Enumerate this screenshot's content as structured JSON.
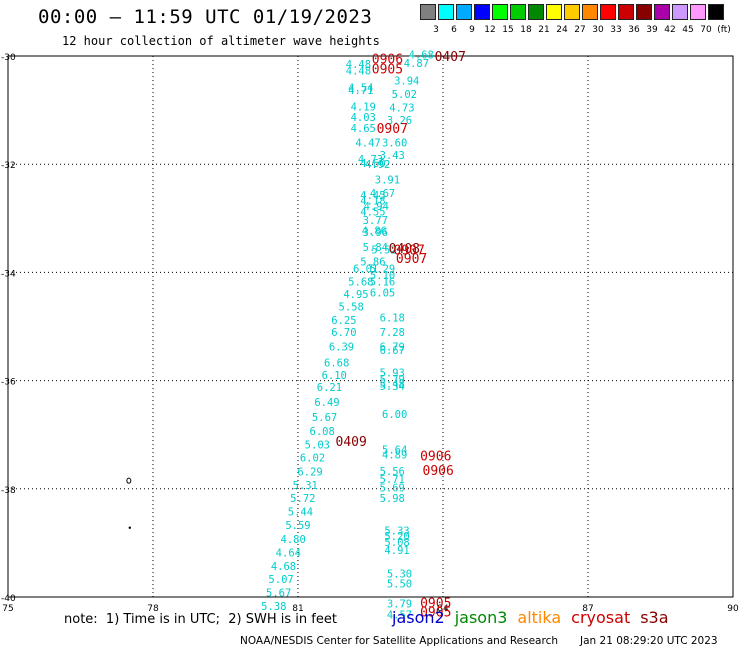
{
  "header": {
    "title": "00:00 – 11:59 UTC 01/19/2023",
    "subtitle": "12 hour collection of altimeter wave heights"
  },
  "color_scale": {
    "unit": "(ft)",
    "items": [
      {
        "label": "3",
        "color": "#808080"
      },
      {
        "label": "6",
        "color": "#00ffff"
      },
      {
        "label": "9",
        "color": "#00aaff"
      },
      {
        "label": "12",
        "color": "#0000ff"
      },
      {
        "label": "15",
        "color": "#00ff00"
      },
      {
        "label": "18",
        "color": "#00cc00"
      },
      {
        "label": "21",
        "color": "#008800"
      },
      {
        "label": "24",
        "color": "#ffff00"
      },
      {
        "label": "27",
        "color": "#ffcc00"
      },
      {
        "label": "30",
        "color": "#ff8800"
      },
      {
        "label": "33",
        "color": "#ff0000"
      },
      {
        "label": "36",
        "color": "#cc0000"
      },
      {
        "label": "39",
        "color": "#880000"
      },
      {
        "label": "42",
        "color": "#aa00aa"
      },
      {
        "label": "45",
        "color": "#cc99ff"
      },
      {
        "label": "70",
        "color": "#ff99ff"
      },
      {
        "label": "",
        "color": "#000000"
      }
    ]
  },
  "chart_data": {
    "type": "scatter",
    "xlim": [
      75,
      90
    ],
    "ylim": [
      -40,
      -30
    ],
    "x_ticks": [
      "75",
      "78",
      "81",
      "84",
      "87",
      "90"
    ],
    "y_ticks": [
      "-30",
      "-32",
      "-34",
      "-36",
      "-38",
      "-40"
    ],
    "grid": true,
    "point_color": "#00cccc",
    "observations": [
      {
        "label": "4.48",
        "lon": 82.25,
        "lat": -30.15
      },
      {
        "label": "4.48",
        "lon": 82.25,
        "lat": -30.27
      },
      {
        "label": "4.54",
        "lon": 82.3,
        "lat": -30.58
      },
      {
        "label": "4.71",
        "lon": 82.3,
        "lat": -30.63
      },
      {
        "label": "4.19",
        "lon": 82.35,
        "lat": -30.93
      },
      {
        "label": "4.03",
        "lon": 82.35,
        "lat": -31.13
      },
      {
        "label": "4.65",
        "lon": 82.35,
        "lat": -31.33
      },
      {
        "label": "4.47",
        "lon": 82.45,
        "lat": -31.6
      },
      {
        "label": "4.73",
        "lon": 82.5,
        "lat": -31.9
      },
      {
        "label": "4.60",
        "lon": 82.55,
        "lat": -31.98
      },
      {
        "label": "4.92",
        "lon": 82.65,
        "lat": -32.0
      },
      {
        "label": "4.45",
        "lon": 82.55,
        "lat": -32.57
      },
      {
        "label": "4.18",
        "lon": 82.55,
        "lat": -32.67
      },
      {
        "label": "4.94",
        "lon": 82.62,
        "lat": -32.77
      },
      {
        "label": "4.55",
        "lon": 82.55,
        "lat": -32.87
      },
      {
        "label": "3.77",
        "lon": 82.6,
        "lat": -33.03
      },
      {
        "label": "4.86",
        "lon": 82.58,
        "lat": -33.23
      },
      {
        "label": "3.96",
        "lon": 82.6,
        "lat": -33.25
      },
      {
        "label": "5.84",
        "lon": 82.6,
        "lat": -33.53
      },
      {
        "label": "5.52",
        "lon": 82.78,
        "lat": -33.58
      },
      {
        "label": "5.86",
        "lon": 82.55,
        "lat": -33.8
      },
      {
        "label": "6.01",
        "lon": 82.4,
        "lat": -33.93
      },
      {
        "label": "5.29",
        "lon": 82.75,
        "lat": -33.93
      },
      {
        "label": "5.10",
        "lon": 82.75,
        "lat": -34.05
      },
      {
        "label": "5.68",
        "lon": 82.3,
        "lat": -34.17
      },
      {
        "label": "5.16",
        "lon": 82.75,
        "lat": -34.17
      },
      {
        "label": "4.95",
        "lon": 82.2,
        "lat": -34.4
      },
      {
        "label": "6.05",
        "lon": 82.75,
        "lat": -34.37
      },
      {
        "label": "5.58",
        "lon": 82.1,
        "lat": -34.63
      },
      {
        "label": "6.25",
        "lon": 81.95,
        "lat": -34.88
      },
      {
        "label": "6.18",
        "lon": 82.95,
        "lat": -34.83
      },
      {
        "label": "6.70",
        "lon": 81.95,
        "lat": -35.1
      },
      {
        "label": "7.28",
        "lon": 82.95,
        "lat": -35.1
      },
      {
        "label": "6.39",
        "lon": 81.9,
        "lat": -35.37
      },
      {
        "label": "6.79",
        "lon": 82.95,
        "lat": -35.37
      },
      {
        "label": "6.67",
        "lon": 82.95,
        "lat": -35.43
      },
      {
        "label": "6.68",
        "lon": 81.8,
        "lat": -35.67
      },
      {
        "label": "6.10",
        "lon": 81.75,
        "lat": -35.9
      },
      {
        "label": "5.93",
        "lon": 82.95,
        "lat": -35.85
      },
      {
        "label": "5.79",
        "lon": 82.95,
        "lat": -35.97
      },
      {
        "label": "5.48",
        "lon": 82.95,
        "lat": -36.05
      },
      {
        "label": "5.34",
        "lon": 82.95,
        "lat": -36.1
      },
      {
        "label": "6.21",
        "lon": 81.65,
        "lat": -36.12
      },
      {
        "label": "6.49",
        "lon": 81.6,
        "lat": -36.4
      },
      {
        "label": "5.67",
        "lon": 81.55,
        "lat": -36.67
      },
      {
        "label": "6.00",
        "lon": 83.0,
        "lat": -36.62
      },
      {
        "label": "6.08",
        "lon": 81.5,
        "lat": -36.93
      },
      {
        "label": "5.03",
        "lon": 81.4,
        "lat": -37.18
      },
      {
        "label": "5.64",
        "lon": 83.0,
        "lat": -37.27
      },
      {
        "label": "6.02",
        "lon": 81.3,
        "lat": -37.42
      },
      {
        "label": "4.89",
        "lon": 83.0,
        "lat": -37.37
      },
      {
        "label": "6.29",
        "lon": 81.25,
        "lat": -37.68
      },
      {
        "label": "5.56",
        "lon": 82.95,
        "lat": -37.67
      },
      {
        "label": "5.71",
        "lon": 82.95,
        "lat": -37.82
      },
      {
        "label": "5.31",
        "lon": 81.15,
        "lat": -37.93
      },
      {
        "label": "5.69",
        "lon": 82.95,
        "lat": -37.98
      },
      {
        "label": "5.72",
        "lon": 81.1,
        "lat": -38.17
      },
      {
        "label": "5.98",
        "lon": 82.95,
        "lat": -38.17
      },
      {
        "label": "5.44",
        "lon": 81.05,
        "lat": -38.42
      },
      {
        "label": "5.59",
        "lon": 81.0,
        "lat": -38.67
      },
      {
        "label": "5.33",
        "lon": 83.05,
        "lat": -38.77
      },
      {
        "label": "5.20",
        "lon": 83.05,
        "lat": -38.87
      },
      {
        "label": "5.08",
        "lon": 83.05,
        "lat": -38.98
      },
      {
        "label": "4.80",
        "lon": 80.9,
        "lat": -38.93
      },
      {
        "label": "4.91",
        "lon": 83.05,
        "lat": -39.13
      },
      {
        "label": "4.64",
        "lon": 80.8,
        "lat": -39.18
      },
      {
        "label": "4.68",
        "lon": 80.7,
        "lat": -39.43
      },
      {
        "label": "5.30",
        "lon": 83.1,
        "lat": -39.57
      },
      {
        "label": "5.07",
        "lon": 80.65,
        "lat": -39.67
      },
      {
        "label": "5.50",
        "lon": 83.1,
        "lat": -39.75
      },
      {
        "label": "5.67",
        "lon": 80.6,
        "lat": -39.92
      },
      {
        "label": "5.38",
        "lon": 80.5,
        "lat": -40.17
      },
      {
        "label": "3.79",
        "lon": 83.1,
        "lat": -40.12
      },
      {
        "label": "4.57",
        "lon": 83.1,
        "lat": -40.32
      },
      {
        "label": "4.68",
        "lon": 83.55,
        "lat": -29.97
      },
      {
        "label": "4.87",
        "lon": 83.45,
        "lat": -30.13
      },
      {
        "label": "3.94",
        "lon": 83.25,
        "lat": -30.45
      },
      {
        "label": "5.02",
        "lon": 83.2,
        "lat": -30.7
      },
      {
        "label": "4.73",
        "lon": 83.15,
        "lat": -30.95
      },
      {
        "label": "3.26",
        "lon": 83.1,
        "lat": -31.18
      },
      {
        "label": "3.60",
        "lon": 83.0,
        "lat": -31.6
      },
      {
        "label": "3.43",
        "lon": 82.95,
        "lat": -31.83
      },
      {
        "label": "3.91",
        "lon": 82.85,
        "lat": -32.28
      },
      {
        "label": "4.67",
        "lon": 82.75,
        "lat": -32.53
      }
    ],
    "pass_labels": [
      {
        "label": "0906",
        "lon": 82.85,
        "lat": -30.05,
        "color": "#cc0000"
      },
      {
        "label": "0905",
        "lon": 82.85,
        "lat": -30.23,
        "color": "#cc0000"
      },
      {
        "label": "0407",
        "lon": 84.15,
        "lat": -30.0,
        "color": "#880000"
      },
      {
        "label": "0907",
        "lon": 82.95,
        "lat": -31.33,
        "color": "#cc0000"
      },
      {
        "label": "0408",
        "lon": 83.2,
        "lat": -33.55,
        "color": "#880000"
      },
      {
        "label": "0907",
        "lon": 83.3,
        "lat": -33.58,
        "color": "#cc0000"
      },
      {
        "label": "0907",
        "lon": 83.35,
        "lat": -33.73,
        "color": "#cc0000"
      },
      {
        "label": "0409",
        "lon": 82.1,
        "lat": -37.12,
        "color": "#880000"
      },
      {
        "label": "0906",
        "lon": 83.85,
        "lat": -37.38,
        "color": "#cc0000"
      },
      {
        "label": "0906",
        "lon": 83.9,
        "lat": -37.65,
        "color": "#cc0000"
      },
      {
        "label": "0905",
        "lon": 83.85,
        "lat": -40.1,
        "color": "#cc0000"
      },
      {
        "label": "0905",
        "lon": 83.85,
        "lat": -40.27,
        "color": "#cc0000"
      }
    ],
    "land_features": [
      {
        "lon": 77.5,
        "lat": -37.85
      },
      {
        "lon": 77.52,
        "lat": -38.72
      }
    ]
  },
  "footer": {
    "note": "note:  1) Time is in UTC;  2) SWH is in feet",
    "missions": [
      {
        "label": "jason2",
        "color": "#0000cc"
      },
      {
        "label": "jason3",
        "color": "#008800"
      },
      {
        "label": "altika",
        "color": "#ff8800"
      },
      {
        "label": "cryosat",
        "color": "#cc0000"
      },
      {
        "label": "s3a",
        "color": "#880000"
      }
    ],
    "credit": "NOAA/NESDIS Center for Satellite Applications and Research",
    "timestamp": "Jan 21 08:29:20 UTC 2023"
  }
}
